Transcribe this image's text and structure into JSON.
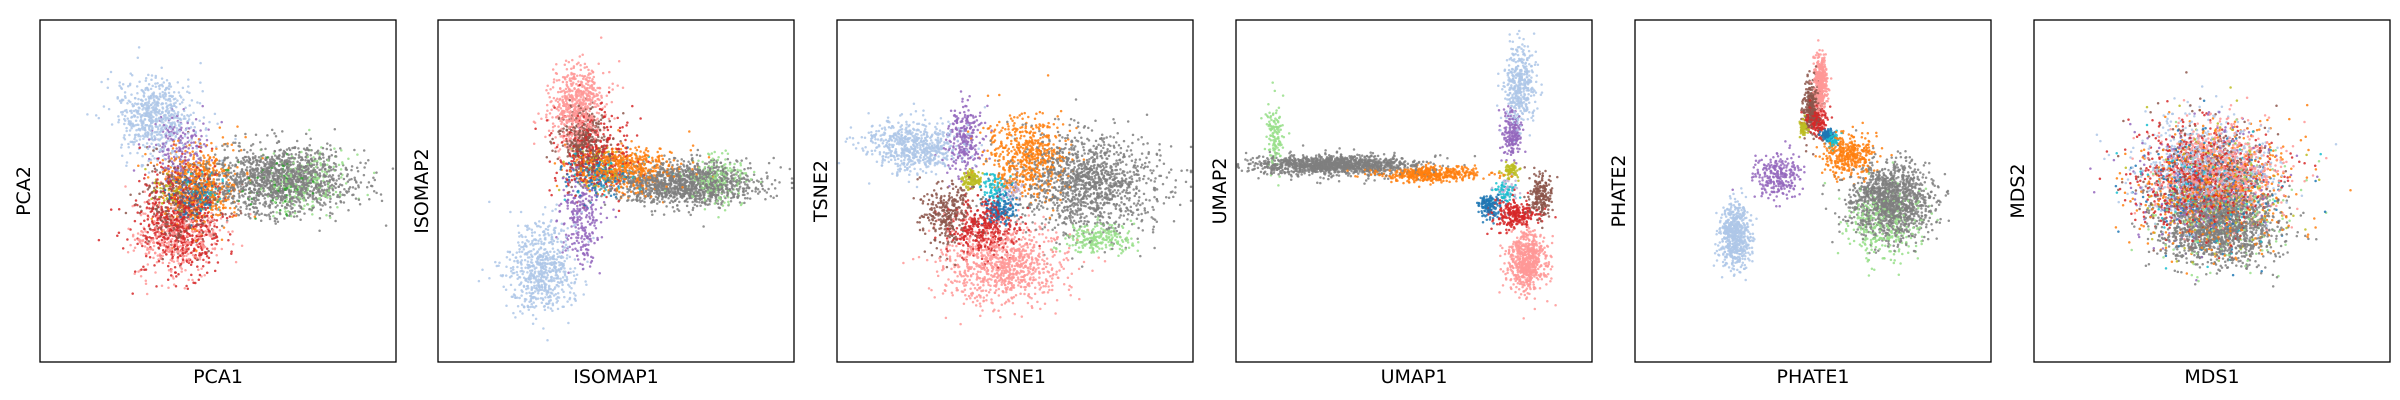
{
  "palette": {
    "gray": "#7f7f7f",
    "light_blue": "#aec7e8",
    "purple": "#9467bd",
    "orange": "#ff7f0e",
    "brown": "#8c564b",
    "red": "#d62728",
    "pink": "#ff9896",
    "light_green": "#98df8a",
    "blue": "#1f77b4",
    "olive": "#bcbd22",
    "cyan": "#17becf",
    "green": "#2ca02c",
    "light_orange": "#ffbb78",
    "lavender": "#c5b0d5",
    "hot_pink": "#e377c2"
  },
  "chart_data": [
    {
      "type": "scatter",
      "xlabel": "PCA1",
      "ylabel": "PCA2",
      "ticks": "none",
      "grid": false,
      "clusters": [
        {
          "color": "light_blue",
          "cx": -1.6,
          "cy": 1.95,
          "sx": 0.5,
          "sy": 0.55,
          "n": 650
        },
        {
          "color": "purple",
          "cx": -1.0,
          "cy": 1.1,
          "sx": 0.35,
          "sy": 0.5,
          "n": 180
        },
        {
          "color": "gray",
          "cx": 1.6,
          "cy": 0.3,
          "sx": 0.95,
          "sy": 0.45,
          "n": 1400
        },
        {
          "color": "light_green",
          "cx": 2.2,
          "cy": 0.2,
          "sx": 0.55,
          "sy": 0.45,
          "n": 200
        },
        {
          "color": "green",
          "cx": 1.4,
          "cy": 0.1,
          "sx": 0.7,
          "sy": 0.4,
          "n": 60
        },
        {
          "color": "orange",
          "cx": -0.5,
          "cy": 0.15,
          "sx": 0.5,
          "sy": 0.55,
          "n": 500
        },
        {
          "color": "brown",
          "cx": -0.9,
          "cy": -0.35,
          "sx": 0.5,
          "sy": 0.6,
          "n": 350
        },
        {
          "color": "red",
          "cx": -1.0,
          "cy": -0.8,
          "sx": 0.55,
          "sy": 0.7,
          "n": 650
        },
        {
          "color": "pink",
          "cx": -1.0,
          "cy": -1.25,
          "sx": 0.55,
          "sy": 0.55,
          "n": 420
        },
        {
          "color": "blue",
          "cx": -0.6,
          "cy": -0.2,
          "sx": 0.3,
          "sy": 0.3,
          "n": 140
        },
        {
          "color": "olive",
          "cx": -1.3,
          "cy": 0.0,
          "sx": 0.25,
          "sy": 0.3,
          "n": 60
        },
        {
          "color": "cyan",
          "cx": -0.5,
          "cy": 0.0,
          "sx": 0.3,
          "sy": 0.3,
          "n": 50
        }
      ]
    },
    {
      "type": "scatter",
      "xlabel": "ISOMAP1",
      "ylabel": "ISOMAP2",
      "ticks": "none",
      "grid": false,
      "clusters": [
        {
          "color": "pink",
          "cx": -1.0,
          "cy": 2.2,
          "sx": 0.35,
          "sy": 0.55,
          "n": 650
        },
        {
          "color": "brown",
          "cx": -0.8,
          "cy": 1.3,
          "sx": 0.3,
          "sy": 0.45,
          "n": 380
        },
        {
          "color": "red",
          "cx": -0.6,
          "cy": 1.0,
          "sx": 0.5,
          "sy": 0.55,
          "n": 320
        },
        {
          "color": "orange",
          "cx": 0.2,
          "cy": 0.6,
          "sx": 0.7,
          "sy": 0.3,
          "n": 550
        },
        {
          "color": "gray",
          "cx": 1.8,
          "cy": 0.2,
          "sx": 0.9,
          "sy": 0.28,
          "n": 1300
        },
        {
          "color": "light_green",
          "cx": 2.6,
          "cy": 0.3,
          "sx": 0.4,
          "sy": 0.35,
          "n": 200
        },
        {
          "color": "purple",
          "cx": -0.9,
          "cy": -0.6,
          "sx": 0.3,
          "sy": 0.7,
          "n": 260
        },
        {
          "color": "light_blue",
          "cx": -1.9,
          "cy": -2.1,
          "sx": 0.45,
          "sy": 0.6,
          "n": 650
        },
        {
          "color": "blue",
          "cx": -0.5,
          "cy": 0.4,
          "sx": 0.4,
          "sy": 0.3,
          "n": 130
        },
        {
          "color": "cyan",
          "cx": -0.3,
          "cy": 0.5,
          "sx": 0.5,
          "sy": 0.3,
          "n": 60
        },
        {
          "color": "olive",
          "cx": -0.6,
          "cy": 0.6,
          "sx": 0.4,
          "sy": 0.3,
          "n": 50
        }
      ]
    },
    {
      "type": "scatter",
      "xlabel": "TSNE1",
      "ylabel": "TSNE2",
      "ticks": "none",
      "grid": false,
      "clusters": [
        {
          "color": "light_blue",
          "cx": -2.6,
          "cy": 1.2,
          "sx": 0.65,
          "sy": 0.35,
          "n": 650
        },
        {
          "color": "purple",
          "cx": -1.3,
          "cy": 1.4,
          "sx": 0.25,
          "sy": 0.45,
          "n": 250
        },
        {
          "color": "orange",
          "cx": 0.3,
          "cy": 0.9,
          "sx": 0.5,
          "sy": 0.55,
          "n": 550
        },
        {
          "color": "gray",
          "cx": 1.9,
          "cy": 0.2,
          "sx": 0.9,
          "sy": 0.65,
          "n": 1300
        },
        {
          "color": "light_green",
          "cx": 2.1,
          "cy": -1.3,
          "sx": 0.45,
          "sy": 0.2,
          "n": 220
        },
        {
          "color": "brown",
          "cx": -1.7,
          "cy": -0.6,
          "sx": 0.35,
          "sy": 0.4,
          "n": 300
        },
        {
          "color": "red",
          "cx": -0.8,
          "cy": -1.0,
          "sx": 0.45,
          "sy": 0.35,
          "n": 380
        },
        {
          "color": "pink",
          "cx": -0.3,
          "cy": -2.0,
          "sx": 0.75,
          "sy": 0.5,
          "n": 900
        },
        {
          "color": "blue",
          "cx": -0.4,
          "cy": -0.5,
          "sx": 0.22,
          "sy": 0.22,
          "n": 160
        },
        {
          "color": "olive",
          "cx": -1.1,
          "cy": 0.3,
          "sx": 0.12,
          "sy": 0.12,
          "n": 110
        },
        {
          "color": "cyan",
          "cx": -0.5,
          "cy": 0.1,
          "sx": 0.18,
          "sy": 0.18,
          "n": 80
        },
        {
          "color": "lavender",
          "cx": -0.1,
          "cy": 0.0,
          "sx": 0.15,
          "sy": 0.15,
          "n": 50
        }
      ]
    },
    {
      "type": "scatter",
      "xlabel": "UMAP1",
      "ylabel": "UMAP2",
      "ticks": "none",
      "grid": false,
      "clusters": [
        {
          "color": "light_green",
          "cx": -3.55,
          "cy": 1.5,
          "sx": 0.1,
          "sy": 0.45,
          "n": 130
        },
        {
          "color": "gray",
          "cx": -2.0,
          "cy": 0.7,
          "sx": 1.0,
          "sy": 0.13,
          "n": 1300
        },
        {
          "color": "orange",
          "cx": 0.4,
          "cy": 0.45,
          "sx": 0.7,
          "sy": 0.1,
          "n": 450
        },
        {
          "color": "light_blue",
          "cx": 2.7,
          "cy": 2.8,
          "sx": 0.2,
          "sy": 0.55,
          "n": 420
        },
        {
          "color": "purple",
          "cx": 2.5,
          "cy": 1.5,
          "sx": 0.13,
          "sy": 0.3,
          "n": 180
        },
        {
          "color": "olive",
          "cx": 2.5,
          "cy": 0.55,
          "sx": 0.1,
          "sy": 0.1,
          "n": 80
        },
        {
          "color": "blue",
          "cx": 1.95,
          "cy": -0.4,
          "sx": 0.15,
          "sy": 0.15,
          "n": 150
        },
        {
          "color": "red",
          "cx": 2.6,
          "cy": -0.6,
          "sx": 0.3,
          "sy": 0.2,
          "n": 250
        },
        {
          "color": "brown",
          "cx": 3.25,
          "cy": -0.1,
          "sx": 0.15,
          "sy": 0.3,
          "n": 200
        },
        {
          "color": "pink",
          "cx": 2.9,
          "cy": -1.9,
          "sx": 0.25,
          "sy": 0.4,
          "n": 650
        },
        {
          "color": "cyan",
          "cx": 2.3,
          "cy": 0.0,
          "sx": 0.15,
          "sy": 0.15,
          "n": 60
        },
        {
          "color": "lavender",
          "cx": 2.4,
          "cy": 0.1,
          "sx": 0.15,
          "sy": 0.15,
          "n": 40
        }
      ]
    },
    {
      "type": "scatter",
      "xlabel": "PHATE1",
      "ylabel": "PHATE2",
      "ticks": "none",
      "grid": false,
      "clusters": [
        {
          "color": "pink",
          "cx": 0.2,
          "cy": 2.9,
          "sx": 0.08,
          "sy": 0.35,
          "n": 420
        },
        {
          "color": "brown",
          "cx": -0.05,
          "cy": 2.2,
          "sx": 0.12,
          "sy": 0.35,
          "n": 300
        },
        {
          "color": "red",
          "cx": 0.1,
          "cy": 1.9,
          "sx": 0.15,
          "sy": 0.2,
          "n": 180
        },
        {
          "color": "olive",
          "cx": -0.25,
          "cy": 1.7,
          "sx": 0.05,
          "sy": 0.1,
          "n": 80
        },
        {
          "color": "blue",
          "cx": 0.35,
          "cy": 1.5,
          "sx": 0.08,
          "sy": 0.08,
          "n": 100
        },
        {
          "color": "orange",
          "cx": 0.9,
          "cy": 0.95,
          "sx": 0.32,
          "sy": 0.28,
          "n": 350
        },
        {
          "color": "gray",
          "cx": 2.0,
          "cy": -0.3,
          "sx": 0.52,
          "sy": 0.5,
          "n": 1300
        },
        {
          "color": "light_green",
          "cx": 1.8,
          "cy": -0.9,
          "sx": 0.5,
          "sy": 0.5,
          "n": 320
        },
        {
          "color": "purple",
          "cx": -0.9,
          "cy": 0.4,
          "sx": 0.32,
          "sy": 0.3,
          "n": 250
        },
        {
          "color": "light_blue",
          "cx": -2.0,
          "cy": -1.2,
          "sx": 0.2,
          "sy": 0.45,
          "n": 600
        },
        {
          "color": "cyan",
          "cx": 0.5,
          "cy": 1.35,
          "sx": 0.1,
          "sy": 0.1,
          "n": 60
        }
      ]
    },
    {
      "type": "scatter",
      "xlabel": "MDS1",
      "ylabel": "MDS2",
      "ticks": "none",
      "grid": false,
      "clusters": [
        {
          "color": "gray",
          "cx": 0.2,
          "cy": -0.85,
          "sx": 0.75,
          "sy": 0.55,
          "n": 1500
        },
        {
          "color": "pink",
          "cx": 0.2,
          "cy": 0.55,
          "sx": 0.8,
          "sy": 0.6,
          "n": 750
        },
        {
          "color": "light_blue",
          "cx": -0.2,
          "cy": 0.6,
          "sx": 0.85,
          "sy": 0.7,
          "n": 650
        },
        {
          "color": "red",
          "cx": -0.3,
          "cy": 0.2,
          "sx": 0.85,
          "sy": 0.75,
          "n": 600
        },
        {
          "color": "orange",
          "cx": 0.1,
          "cy": 0.0,
          "sx": 0.95,
          "sy": 0.8,
          "n": 600
        },
        {
          "color": "brown",
          "cx": -0.2,
          "cy": 0.4,
          "sx": 0.8,
          "sy": 0.7,
          "n": 300
        },
        {
          "color": "purple",
          "cx": -0.3,
          "cy": 0.1,
          "sx": 0.85,
          "sy": 0.8,
          "n": 300
        },
        {
          "color": "blue",
          "cx": 0.0,
          "cy": 0.0,
          "sx": 0.9,
          "sy": 0.8,
          "n": 200
        },
        {
          "color": "light_green",
          "cx": 0.3,
          "cy": -0.4,
          "sx": 0.9,
          "sy": 0.8,
          "n": 250
        },
        {
          "color": "olive",
          "cx": 0.0,
          "cy": 0.0,
          "sx": 0.9,
          "sy": 0.9,
          "n": 120
        },
        {
          "color": "cyan",
          "cx": 0.0,
          "cy": 0.0,
          "sx": 0.9,
          "sy": 0.9,
          "n": 90
        }
      ]
    }
  ]
}
